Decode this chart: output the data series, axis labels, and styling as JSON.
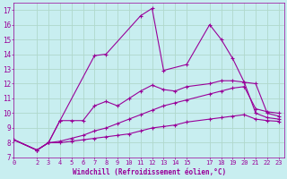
{
  "background_color": "#c8eef0",
  "grid_color": "#b0d8cc",
  "line_color": "#990099",
  "xlabel": "Windchill (Refroidissement éolien,°C)",
  "xlim": [
    0,
    23.5
  ],
  "ylim": [
    7,
    17.5
  ],
  "xticks": [
    0,
    2,
    3,
    4,
    5,
    6,
    7,
    8,
    9,
    10,
    11,
    12,
    13,
    14,
    15,
    17,
    18,
    19,
    20,
    21,
    22,
    23
  ],
  "yticks": [
    7,
    8,
    9,
    10,
    11,
    12,
    13,
    14,
    15,
    16,
    17
  ],
  "lines": [
    {
      "x": [
        0,
        2,
        3,
        4,
        7,
        8,
        11,
        12,
        13,
        15,
        17,
        18,
        19,
        20,
        21,
        22,
        23
      ],
      "y": [
        8.2,
        7.5,
        8.0,
        9.5,
        13.9,
        14.0,
        16.6,
        17.1,
        12.9,
        13.3,
        16.0,
        15.0,
        13.7,
        12.1,
        12.0,
        10.0,
        9.8
      ]
    },
    {
      "x": [
        0,
        2,
        3,
        4,
        5,
        6,
        7,
        8,
        9,
        10,
        11,
        12,
        13,
        14,
        15,
        17,
        18,
        19,
        20,
        21,
        22,
        23
      ],
      "y": [
        8.2,
        7.5,
        8.0,
        9.5,
        9.5,
        9.5,
        10.5,
        10.8,
        10.5,
        11.0,
        11.5,
        11.9,
        11.6,
        11.5,
        11.8,
        12.0,
        12.2,
        12.2,
        12.1,
        10.0,
        9.7,
        9.6
      ]
    },
    {
      "x": [
        0,
        2,
        3,
        4,
        5,
        6,
        7,
        8,
        9,
        10,
        11,
        12,
        13,
        14,
        15,
        17,
        18,
        19,
        20,
        21,
        22,
        23
      ],
      "y": [
        8.2,
        7.5,
        8.0,
        8.1,
        8.3,
        8.5,
        8.8,
        9.0,
        9.3,
        9.6,
        9.9,
        10.2,
        10.5,
        10.7,
        10.9,
        11.3,
        11.5,
        11.7,
        11.8,
        10.3,
        10.1,
        10.0
      ]
    },
    {
      "x": [
        0,
        2,
        3,
        4,
        5,
        6,
        7,
        8,
        9,
        10,
        11,
        12,
        13,
        14,
        15,
        17,
        18,
        19,
        20,
        21,
        22,
        23
      ],
      "y": [
        8.2,
        7.5,
        8.0,
        8.0,
        8.1,
        8.2,
        8.3,
        8.4,
        8.5,
        8.6,
        8.8,
        9.0,
        9.1,
        9.2,
        9.4,
        9.6,
        9.7,
        9.8,
        9.9,
        9.6,
        9.5,
        9.45
      ]
    }
  ]
}
